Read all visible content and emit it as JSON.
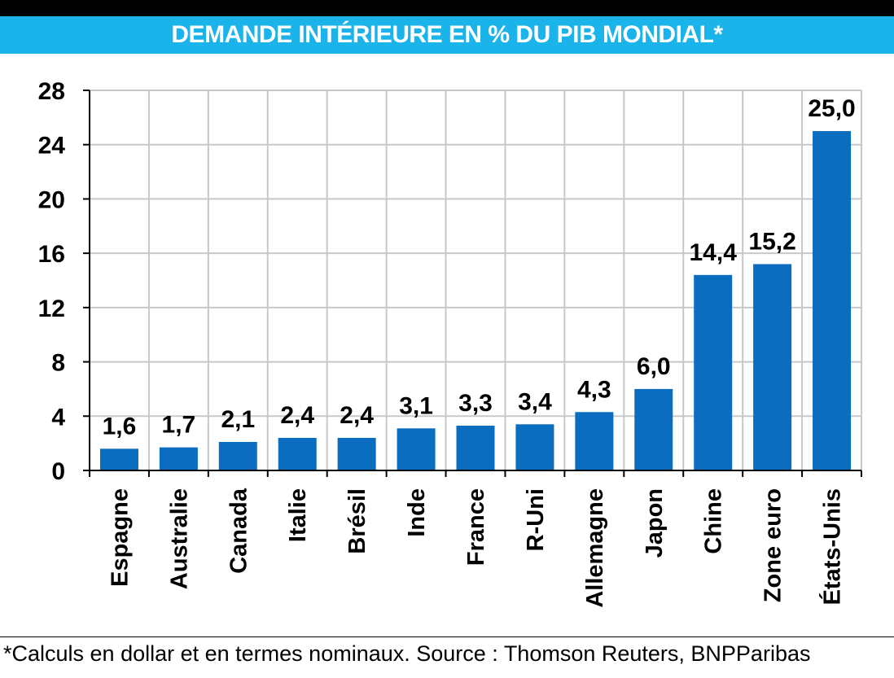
{
  "title": "DEMANDE INTÉRIEURE EN % DU PIB MONDIAL*",
  "footnote": "*Calculs en dollar et en termes nominaux. Source : Thomson Reuters, BNPParibas",
  "colors": {
    "bar": "#0b6dbf",
    "title_band": "#1ab3ea",
    "top_band": "#000000"
  },
  "chart_data": {
    "type": "bar",
    "title": "DEMANDE INTÉRIEURE EN % DU PIB MONDIAL*",
    "categories": [
      "Espagne",
      "Australie",
      "Canada",
      "Italie",
      "Brésil",
      "Inde",
      "France",
      "R-Uni",
      "Allemagne",
      "Japon",
      "Chine",
      "Zone euro",
      "États-Unis"
    ],
    "values": [
      1.6,
      1.7,
      2.1,
      2.4,
      2.4,
      3.1,
      3.3,
      3.4,
      4.3,
      6.0,
      14.4,
      15.2,
      25.0
    ],
    "value_labels": [
      "1,6",
      "1,7",
      "2,1",
      "2,4",
      "2,4",
      "3,1",
      "3,3",
      "3,4",
      "4,3",
      "6,0",
      "14,4",
      "15,2",
      "25,0"
    ],
    "ylim": [
      0,
      28
    ],
    "yticks": [
      "0",
      "4",
      "8",
      "12",
      "16",
      "20",
      "24",
      "28"
    ],
    "xlabel": "",
    "ylabel": "",
    "grid": true
  }
}
